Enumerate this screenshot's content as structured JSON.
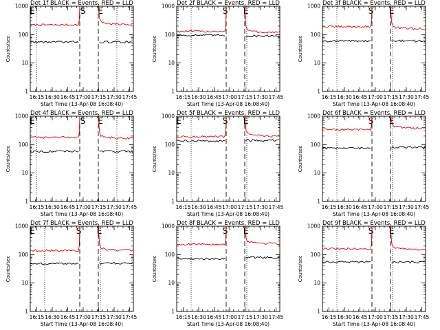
{
  "figure": {
    "background": "#ffffff",
    "series_colors": {
      "events": "#000000",
      "lld": "#e00000"
    }
  },
  "chart_data": [
    {
      "type": "line",
      "title": "Det 1f BLACK = Events, RED = LLD",
      "xlabel": "Start Time (13-Apr-08 16:08:40)",
      "ylabel": "Counts/sec",
      "yscale": "log",
      "ylim": [
        1,
        1000
      ],
      "yticks": [
        1,
        10,
        100,
        1000
      ],
      "ytick_labels": [
        "1",
        "10",
        "100",
        "1000"
      ],
      "xlim_minutes": [
        0,
        100
      ],
      "xticks_minutes": [
        6.33,
        21.33,
        36.33,
        51.33,
        66.33,
        81.33,
        96.33
      ],
      "xtick_labels": [
        "16:15",
        "16:30",
        "16:45",
        "17:00",
        "17:15",
        "17:30",
        "17:45"
      ],
      "gap_minutes": [
        48,
        66
      ],
      "dashed_lines_minutes": [
        48,
        66
      ],
      "dotted_lines_minutes": [
        6,
        84
      ],
      "markers": [
        {
          "label": "E",
          "x_minutes": 2
        },
        {
          "label": "S",
          "x_minutes": 51
        },
        {
          "label": "E",
          "x_minutes": 68
        }
      ],
      "series": [
        {
          "color": "#e00000",
          "before": 220,
          "after": 230
        },
        {
          "color": "#000000",
          "before": 55,
          "after": 55
        }
      ]
    },
    {
      "type": "line",
      "title": "Det 2f BLACK = Events, RED = LLD",
      "xlabel": "Start Time (13-Apr-08 16:08:40)",
      "ylabel": "Counts/sec",
      "yscale": "log",
      "ylim": [
        1,
        1000
      ],
      "yticks": [
        1,
        10,
        100,
        1000
      ],
      "ytick_labels": [
        "1",
        "10",
        "100",
        "1000"
      ],
      "xlim_minutes": [
        0,
        100
      ],
      "xticks_minutes": [
        6.33,
        21.33,
        36.33,
        51.33,
        66.33,
        81.33,
        96.33
      ],
      "xtick_labels": [
        "16:15",
        "16:30",
        "16:45",
        "17:00",
        "17:15",
        "17:30",
        "17:45"
      ],
      "gap_minutes": [
        48,
        66
      ],
      "dashed_lines_minutes": [
        48,
        66
      ],
      "dotted_lines_minutes": [
        14,
        68
      ],
      "markers": [
        {
          "label": "S",
          "x_minutes": 47
        },
        {
          "label": "E",
          "x_minutes": 67
        }
      ],
      "series": [
        {
          "color": "#e00000",
          "before": 130,
          "after": 120
        },
        {
          "color": "#000000",
          "before": 95,
          "after": 90
        }
      ]
    },
    {
      "type": "line",
      "title": "Det 3f BLACK = Events, RED = LLD",
      "xlabel": "Start Time (13-Apr-08 16:08:40)",
      "ylabel": "Counts/sec",
      "yscale": "log",
      "ylim": [
        1,
        1000
      ],
      "yticks": [
        1,
        10,
        100,
        1000
      ],
      "ytick_labels": [
        "1",
        "10",
        "100",
        "1000"
      ],
      "xlim_minutes": [
        0,
        100
      ],
      "xticks_minutes": [
        6.33,
        21.33,
        36.33,
        51.33,
        66.33,
        81.33,
        96.33
      ],
      "xtick_labels": [
        "16:15",
        "16:30",
        "16:45",
        "17:00",
        "17:15",
        "17:30",
        "17:45"
      ],
      "gap_minutes": [
        48,
        66
      ],
      "dashed_lines_minutes": [
        48,
        66
      ],
      "dotted_lines_minutes": [
        14,
        68
      ],
      "markers": [
        {
          "label": "S",
          "x_minutes": 47
        },
        {
          "label": "E",
          "x_minutes": 67
        }
      ],
      "series": [
        {
          "color": "#e00000",
          "before": 190,
          "after": 160
        },
        {
          "color": "#000000",
          "before": 60,
          "after": 60
        }
      ]
    },
    {
      "type": "line",
      "title": "Det 4f BLACK = Events, RED = LLD",
      "xlabel": "Start Time (13-Apr-08 16:08:40)",
      "ylabel": "Counts/sec",
      "yscale": "log",
      "ylim": [
        1,
        1000
      ],
      "yticks": [
        1,
        10,
        100,
        1000
      ],
      "ytick_labels": [
        "1",
        "10",
        "100",
        "1000"
      ],
      "xlim_minutes": [
        0,
        100
      ],
      "xticks_minutes": [
        6.33,
        21.33,
        36.33,
        51.33,
        66.33,
        81.33,
        96.33
      ],
      "xtick_labels": [
        "16:15",
        "16:30",
        "16:45",
        "17:00",
        "17:15",
        "17:30",
        "17:45"
      ],
      "gap_minutes": [
        48,
        66
      ],
      "dashed_lines_minutes": [
        48,
        66
      ],
      "dotted_lines_minutes": [
        6,
        84
      ],
      "markers": [
        {
          "label": "E",
          "x_minutes": 2
        },
        {
          "label": "S",
          "x_minutes": 51
        },
        {
          "label": "E",
          "x_minutes": 68
        }
      ],
      "series": [
        {
          "color": "#e00000",
          "before": 180,
          "after": 170
        },
        {
          "color": "#000000",
          "before": 58,
          "after": 58
        }
      ]
    },
    {
      "type": "line",
      "title": "Det 5f BLACK = Events, RED = LLD",
      "xlabel": "Start Time (13-Apr-08 16:08:40)",
      "ylabel": "Counts/sec",
      "yscale": "log",
      "ylim": [
        1,
        1000
      ],
      "yticks": [
        1,
        10,
        100,
        1000
      ],
      "ytick_labels": [
        "1",
        "10",
        "100",
        "1000"
      ],
      "xlim_minutes": [
        0,
        100
      ],
      "xticks_minutes": [
        6.33,
        21.33,
        36.33,
        51.33,
        66.33,
        81.33,
        96.33
      ],
      "xtick_labels": [
        "16:15",
        "16:30",
        "16:45",
        "17:00",
        "17:15",
        "17:30",
        "17:45"
      ],
      "gap_minutes": [
        48,
        66
      ],
      "dashed_lines_minutes": [
        48,
        66
      ],
      "dotted_lines_minutes": [
        14,
        68
      ],
      "markers": [
        {
          "label": "E",
          "x_minutes": 2
        },
        {
          "label": "S",
          "x_minutes": 47
        },
        {
          "label": "E",
          "x_minutes": 67
        }
      ],
      "series": [
        {
          "color": "#e00000",
          "before": 190,
          "after": 200
        },
        {
          "color": "#000000",
          "before": 135,
          "after": 140
        }
      ]
    },
    {
      "type": "line",
      "title": "Det 6f BLACK = Events, RED = LLD",
      "xlabel": "Start Time (13-Apr-08 16:08:40)",
      "ylabel": "Counts/sec",
      "yscale": "log",
      "ylim": [
        1,
        1000
      ],
      "yticks": [
        1,
        10,
        100,
        1000
      ],
      "ytick_labels": [
        "1",
        "10",
        "100",
        "1000"
      ],
      "xlim_minutes": [
        0,
        100
      ],
      "xticks_minutes": [
        6.33,
        21.33,
        36.33,
        51.33,
        66.33,
        81.33,
        96.33
      ],
      "xtick_labels": [
        "16:15",
        "16:30",
        "16:45",
        "17:00",
        "17:15",
        "17:30",
        "17:45"
      ],
      "gap_minutes": [
        48,
        66
      ],
      "dashed_lines_minutes": [
        48,
        66
      ],
      "dotted_lines_minutes": [
        14,
        68
      ],
      "markers": [
        {
          "label": "S",
          "x_minutes": 47
        },
        {
          "label": "E",
          "x_minutes": 67
        }
      ],
      "series": [
        {
          "color": "#e00000",
          "before": 340,
          "after": 380
        },
        {
          "color": "#000000",
          "before": 75,
          "after": 80
        }
      ]
    },
    {
      "type": "line",
      "title": "Det 7f BLACK = Events, RED = LLD",
      "xlabel": "Start Time (13-Apr-08 16:08:40)",
      "ylabel": "Counts/sec",
      "yscale": "log",
      "ylim": [
        1,
        1000
      ],
      "yticks": [
        1,
        10,
        100,
        1000
      ],
      "ytick_labels": [
        "1",
        "10",
        "100",
        "1000"
      ],
      "xlim_minutes": [
        0,
        100
      ],
      "xticks_minutes": [
        6.33,
        21.33,
        36.33,
        51.33,
        66.33,
        81.33,
        96.33
      ],
      "xtick_labels": [
        "16:15",
        "16:30",
        "16:45",
        "17:00",
        "17:15",
        "17:30",
        "17:45"
      ],
      "gap_minutes": [
        48,
        66
      ],
      "dashed_lines_minutes": [
        48,
        66
      ],
      "dotted_lines_minutes": [
        14,
        68
      ],
      "markers": [
        {
          "label": "E",
          "x_minutes": 2
        },
        {
          "label": "S",
          "x_minutes": 47
        },
        {
          "label": "E",
          "x_minutes": 67
        }
      ],
      "series": [
        {
          "color": "#e00000",
          "before": 140,
          "after": 140
        },
        {
          "color": "#000000",
          "before": 48,
          "after": 50
        }
      ]
    },
    {
      "type": "line",
      "title": "Det 8f BLACK = Events, RED = LLD",
      "xlabel": "Start Time (13-Apr-08 16:08:40)",
      "ylabel": "Counts/sec",
      "yscale": "log",
      "ylim": [
        1,
        1000
      ],
      "yticks": [
        1,
        10,
        100,
        1000
      ],
      "ytick_labels": [
        "1",
        "10",
        "100",
        "1000"
      ],
      "xlim_minutes": [
        0,
        100
      ],
      "xticks_minutes": [
        6.33,
        21.33,
        36.33,
        51.33,
        66.33,
        81.33,
        96.33
      ],
      "xtick_labels": [
        "16:15",
        "16:30",
        "16:45",
        "17:00",
        "17:15",
        "17:30",
        "17:45"
      ],
      "gap_minutes": [
        48,
        66
      ],
      "dashed_lines_minutes": [
        48,
        66
      ],
      "dotted_lines_minutes": [
        14,
        68
      ],
      "markers": [
        {
          "label": "S",
          "x_minutes": 47
        },
        {
          "label": "E",
          "x_minutes": 67
        }
      ],
      "series": [
        {
          "color": "#e00000",
          "before": 230,
          "after": 250
        },
        {
          "color": "#000000",
          "before": 72,
          "after": 80
        }
      ]
    },
    {
      "type": "line",
      "title": "Det 9f BLACK = Events, RED = LLD",
      "xlabel": "Start Time (13-Apr-08 16:08:40)",
      "ylabel": "Counts/sec",
      "yscale": "log",
      "ylim": [
        1,
        1000
      ],
      "yticks": [
        1,
        10,
        100,
        1000
      ],
      "ytick_labels": [
        "1",
        "10",
        "100",
        "1000"
      ],
      "xlim_minutes": [
        0,
        100
      ],
      "xticks_minutes": [
        6.33,
        21.33,
        36.33,
        51.33,
        66.33,
        81.33,
        96.33
      ],
      "xtick_labels": [
        "16:15",
        "16:30",
        "16:45",
        "17:00",
        "17:15",
        "17:30",
        "17:45"
      ],
      "gap_minutes": [
        48,
        66
      ],
      "dashed_lines_minutes": [
        48,
        66
      ],
      "dotted_lines_minutes": [
        14,
        68
      ],
      "markers": [
        {
          "label": "S",
          "x_minutes": 47
        },
        {
          "label": "E",
          "x_minutes": 67
        }
      ],
      "series": [
        {
          "color": "#e00000",
          "before": 160,
          "after": 150
        },
        {
          "color": "#000000",
          "before": 55,
          "after": 55
        }
      ]
    }
  ]
}
